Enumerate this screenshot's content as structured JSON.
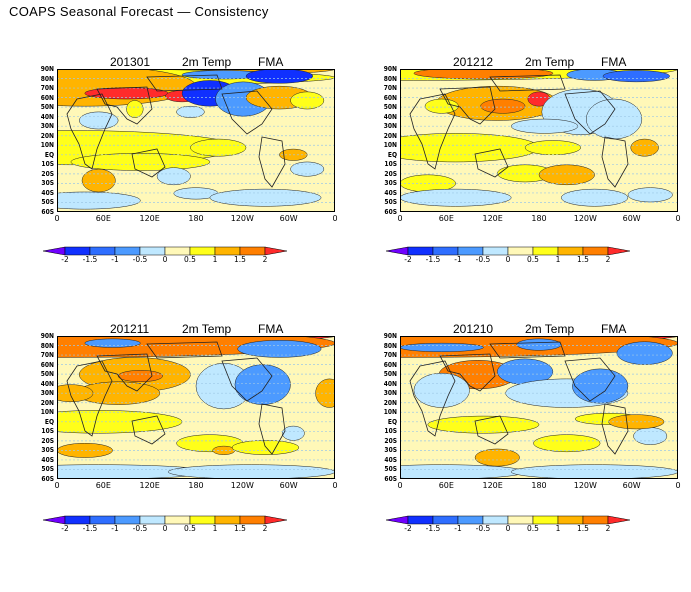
{
  "page": {
    "title": "COAPS Seasonal Forecast — Consistency"
  },
  "colors": {
    "levels": [
      "#7000ff",
      "#1030ff",
      "#2e6eff",
      "#4c9aff",
      "#bfe8ff",
      "#fff8b8",
      "#ffff1a",
      "#ffb400",
      "#ff7f00",
      "#ff2b2b"
    ],
    "grid_line": "#9ec7e6",
    "contour": "#222222"
  },
  "colorbar": {
    "ticks": [
      "-2",
      "-1.5",
      "-1",
      "-0.5",
      "0",
      "0.5",
      "1",
      "1.5",
      "2"
    ]
  },
  "axes": {
    "lat_labels": [
      "90N",
      "80N",
      "70N",
      "60N",
      "50N",
      "40N",
      "30N",
      "20N",
      "10N",
      "EQ",
      "10S",
      "20S",
      "30S",
      "40S",
      "50S",
      "60S"
    ],
    "lon_labels": [
      "0",
      "60E",
      "120E",
      "180",
      "120W",
      "60W",
      "0"
    ]
  },
  "panels": [
    {
      "id": "201301",
      "init": "201301",
      "variable": "2m Temp",
      "season": "FMA"
    },
    {
      "id": "201212",
      "init": "201212",
      "variable": "2m Temp",
      "season": "FMA"
    },
    {
      "id": "201211",
      "init": "201211",
      "variable": "2m Temp",
      "season": "FMA"
    },
    {
      "id": "201210",
      "init": "201210",
      "variable": "2m Temp",
      "season": "FMA"
    }
  ]
}
